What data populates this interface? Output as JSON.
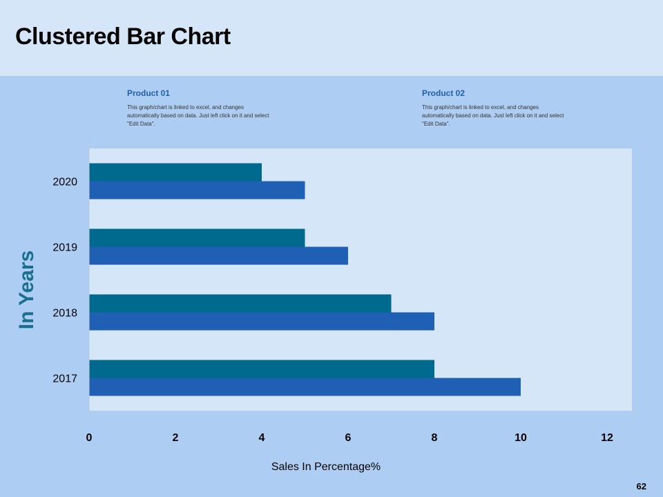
{
  "slide": {
    "title": "Clustered Bar Chart",
    "page_number": "62"
  },
  "legend": [
    {
      "name": "Product 01",
      "description": "This graph/chart is linked to excel, and changes automatically based on data. Just left click  on it and select \"Edit Data\"."
    },
    {
      "name": "Product 02",
      "description": "This graph/chart is linked to excel, and changes automatically based on data. Just left click  on it and select \"Edit Data\"."
    }
  ],
  "chart_data": {
    "type": "bar",
    "orientation": "horizontal",
    "categories": [
      "2017",
      "2018",
      "2019",
      "2020"
    ],
    "series": [
      {
        "name": "Product 01",
        "values": [
          8,
          7,
          5,
          4
        ],
        "color": "#006a8e"
      },
      {
        "name": "Product 02",
        "values": [
          10,
          8,
          6,
          5
        ],
        "color": "#1f5fb4"
      }
    ],
    "xlabel": "Sales In Percentage%",
    "ylabel": "In Years",
    "xlim": [
      0,
      12
    ],
    "xticks": [
      0,
      2,
      4,
      6,
      8,
      10,
      12
    ],
    "xtick_labels": [
      "0",
      "2",
      "4",
      "6",
      "8",
      "10",
      "12"
    ],
    "plot_background": "#d6e6f9",
    "ylabel_color": "#1a6f8f",
    "grid": false
  }
}
